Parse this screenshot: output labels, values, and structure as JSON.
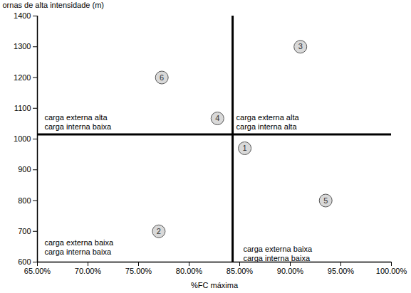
{
  "chart_data": {
    "type": "scatter",
    "x_label": "%FC máxima",
    "y_label": "ornas de alta intensidade (m)",
    "x": [
      85.5,
      77,
      91,
      82.8,
      93.5,
      77.3
    ],
    "values": [
      970,
      700,
      1300,
      1067,
      800,
      1200
    ],
    "labels": [
      "1",
      "2",
      "3",
      "4",
      "5",
      "6"
    ],
    "data_labels": true,
    "marker": "circle",
    "color": "#d9d9d9",
    "xlim": [
      65,
      100
    ],
    "xticks": [
      {
        "value": 65,
        "label": "65.00%"
      },
      {
        "value": 70,
        "label": "70.00%"
      },
      {
        "value": 75,
        "label": "75.00%"
      },
      {
        "value": 80,
        "label": "80.00%"
      },
      {
        "value": 85,
        "label": "85.00%"
      },
      {
        "value": 90,
        "label": "90.00%"
      },
      {
        "value": 95,
        "label": "95.00%"
      },
      {
        "value": 100,
        "label": "100.00%"
      }
    ],
    "ylim": [
      600,
      1400
    ],
    "yticks": [
      600,
      700,
      800,
      900,
      1000,
      1100,
      1200,
      1300,
      1400
    ],
    "grid": false,
    "reference_lines": {
      "x": 84.3,
      "y": 1015
    },
    "annotations": [
      {
        "lines": [
          "carga externa alta",
          "carga interna baixa"
        ]
      },
      {
        "lines": [
          "carga externa alta",
          "carga interna alta"
        ]
      },
      {
        "lines": [
          "carga externa baixa",
          "carga interna baixa"
        ]
      },
      {
        "lines": [
          "carga externa baixa",
          "carga interna baixa"
        ]
      }
    ]
  }
}
